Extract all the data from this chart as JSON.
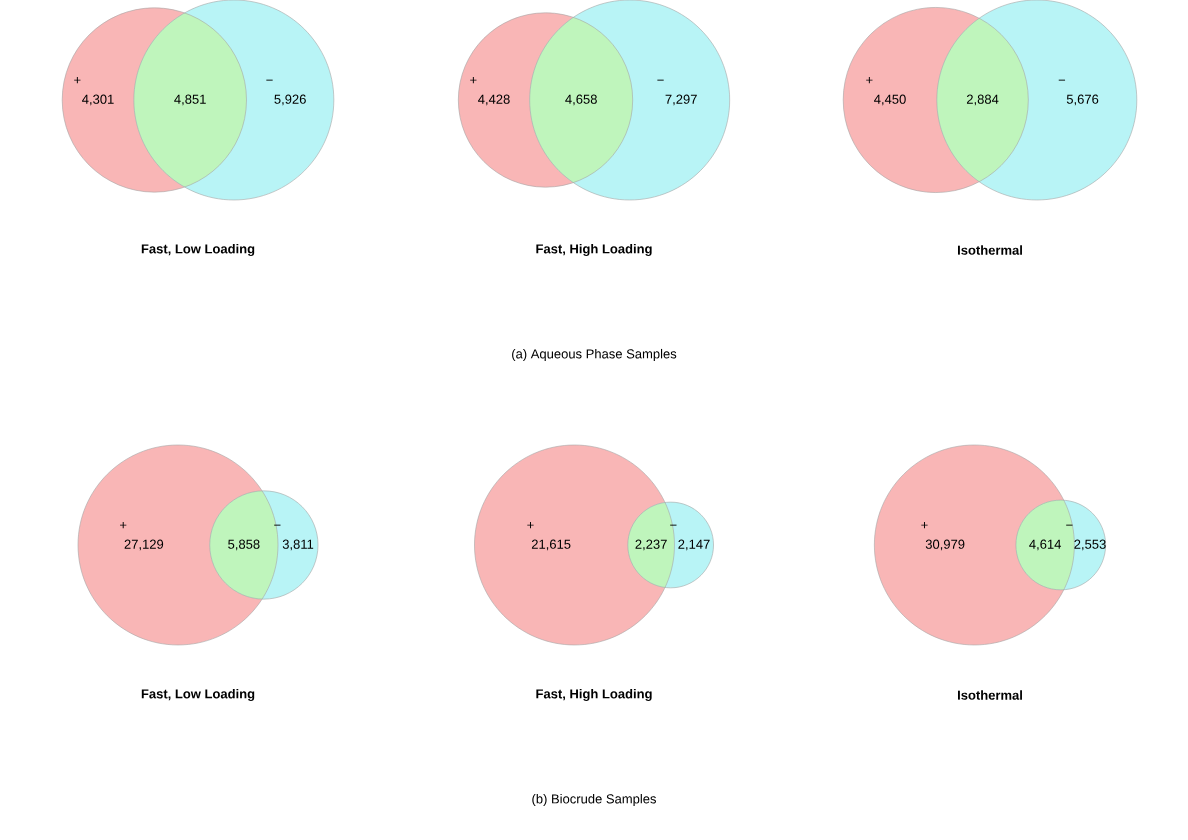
{
  "chart_data": [
    {
      "type": "other",
      "title": "Fast, Low Loading",
      "categories": [
        "+",
        null,
        "−"
      ],
      "values": [
        4301,
        4851,
        5926
      ],
      "value_labels": [
        "4,301",
        "4,851",
        "5,926"
      ],
      "colors": [
        "#f9b6b6",
        "#bff5bc",
        "#b8f4f6"
      ]
    },
    {
      "type": "other",
      "title": "Fast, High Loading",
      "categories": [
        "+",
        null,
        "−"
      ],
      "values": [
        4428,
        4658,
        7297
      ],
      "value_labels": [
        "4,428",
        "4,658",
        "7,297"
      ],
      "colors": [
        "#f9b6b6",
        "#bff5bc",
        "#b8f4f6"
      ],
      "annotations": [
        "(a) Aqueous Phase Samples"
      ]
    },
    {
      "type": "other",
      "title": "Isothermal",
      "categories": [
        "+",
        null,
        "−"
      ],
      "values": [
        4450,
        2884,
        5676
      ],
      "value_labels": [
        "4,450",
        "2,884",
        "5,676"
      ],
      "colors": [
        "#f9b6b6",
        "#bff5bc",
        "#b8f4f6"
      ]
    },
    {
      "type": "other",
      "title": "Fast, Low Loading",
      "categories": [
        "+",
        null,
        "−"
      ],
      "values": [
        27129,
        5858,
        3811
      ],
      "value_labels": [
        "27,129",
        "5,858",
        "3,811"
      ],
      "colors": [
        "#f9b6b6",
        "#bff5bc",
        "#b8f4f6"
      ]
    },
    {
      "type": "other",
      "title": "Fast, High Loading",
      "categories": [
        "+",
        null,
        "−"
      ],
      "values": [
        21615,
        2237,
        2147
      ],
      "value_labels": [
        "21,615",
        "2,237",
        "2,147"
      ],
      "colors": [
        "#f9b6b6",
        "#bff5bc",
        "#b8f4f6"
      ],
      "annotations": [
        "(b) Biocrude Samples"
      ]
    },
    {
      "type": "other",
      "title": "Isothermal",
      "categories": [
        "+",
        null,
        "−"
      ],
      "values": [
        30979,
        4614,
        2553
      ],
      "value_labels": [
        "30,979",
        "4,614",
        "2,553"
      ],
      "colors": [
        "#f9b6b6",
        "#bff5bc",
        "#b8f4f6"
      ]
    }
  ]
}
